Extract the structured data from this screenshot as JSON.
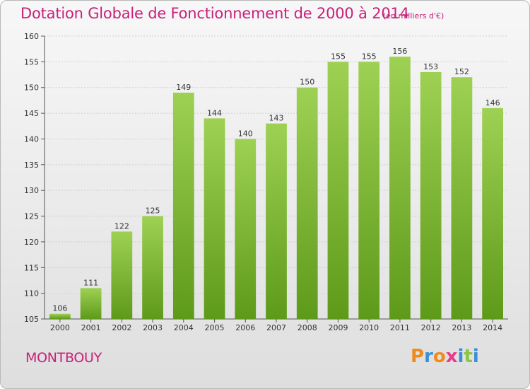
{
  "title": "Dotation Globale de Fonctionnement de 2000 à 2014",
  "subtitle": "(en milliers d'€)",
  "commune": "MONTBOUY",
  "logo": {
    "text": "Proxiti",
    "letter_colors": [
      "#f08a1c",
      "#3a8fd8",
      "#f08a1c",
      "#e83a8a",
      "#3a8fd8",
      "#8cc63f",
      "#3a8fd8"
    ]
  },
  "colors": {
    "title": "#c8207a",
    "bar_light": "#9ed153",
    "bar_dark": "#5e9a1a",
    "grid": "#cfcfcf"
  },
  "chart_data": {
    "type": "bar",
    "title": "Dotation Globale de Fonctionnement de 2000 à 2014",
    "subtitle": "(en milliers d'€)",
    "xlabel": "",
    "ylabel": "",
    "categories": [
      "2000",
      "2001",
      "2002",
      "2003",
      "2004",
      "2005",
      "2006",
      "2007",
      "2008",
      "2009",
      "2010",
      "2011",
      "2012",
      "2013",
      "2014"
    ],
    "values": [
      106,
      111,
      122,
      125,
      149,
      144,
      140,
      143,
      150,
      155,
      155,
      156,
      153,
      152,
      146
    ],
    "ylim": [
      105,
      160
    ],
    "yticks": [
      105,
      110,
      115,
      120,
      125,
      130,
      135,
      140,
      145,
      150,
      155,
      160
    ],
    "grid": true
  }
}
